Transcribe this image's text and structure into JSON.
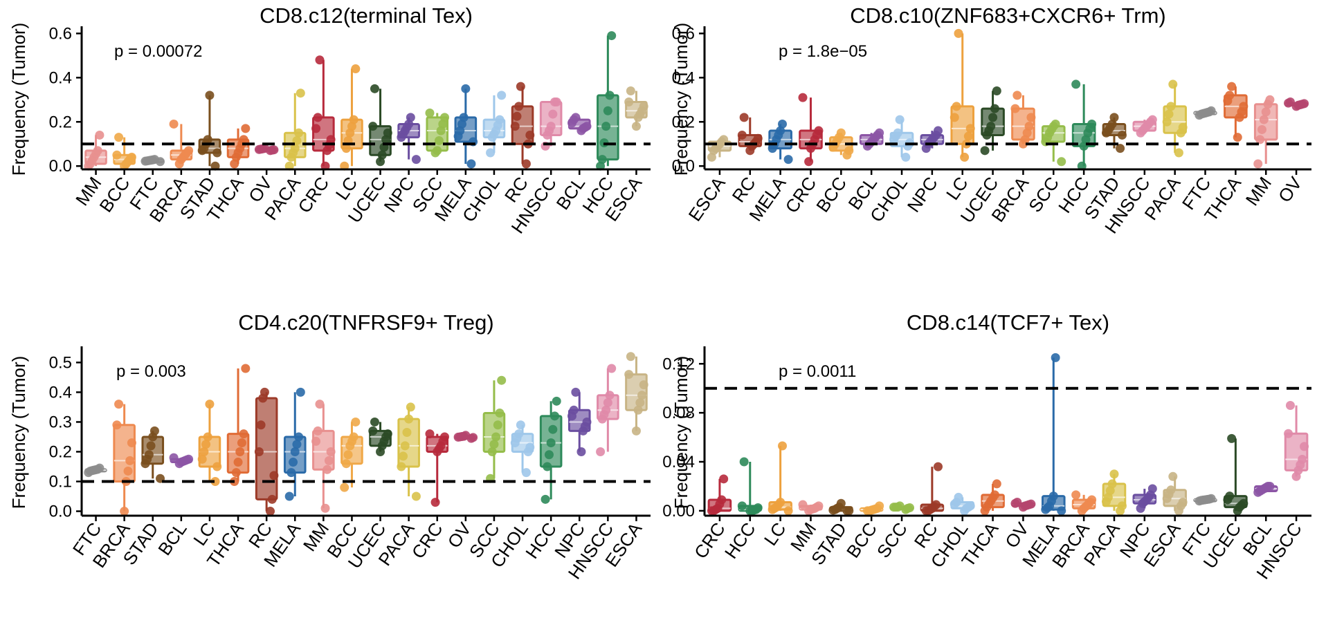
{
  "colors": {
    "MM": "#e8908f",
    "BCC": "#f0a848",
    "FTC": "#8c8c8c",
    "BRCA": "#ee8a50",
    "STAD": "#7a4f1e",
    "THCA": "#e06b35",
    "OV": "#b5456e",
    "PACA": "#d9c24a",
    "CRC": "#b72a3c",
    "LC": "#eda13e",
    "UCEC": "#2b4a26",
    "NPC": "#6a4ea0",
    "SCC": "#95bd4a",
    "MELA": "#2a6aa8",
    "CHOL": "#9ec7ea",
    "RC": "#9c3a28",
    "HNSCC": "#e08aa8",
    "BCL": "#8c55a5",
    "HCC": "#2d8a5a",
    "ESCA": "#c8b485"
  },
  "chart_data": [
    {
      "type": "box",
      "title": "CD8.c12(terminal Tex)",
      "ylabel": "Frequency (Tumor)",
      "pvalue": "p = 0.00072",
      "ylim": [
        -0.015,
        0.62
      ],
      "yticks": [
        0.0,
        0.2,
        0.4,
        0.6
      ],
      "ytick_labels": [
        "0.0",
        "0.2",
        "0.4",
        "0.6"
      ],
      "hline": 0.1,
      "categories": [
        "MM",
        "BCC",
        "FTC",
        "BRCA",
        "STAD",
        "THCA",
        "OV",
        "PACA",
        "CRC",
        "LC",
        "UCEC",
        "NPC",
        "SCC",
        "MELA",
        "CHOL",
        "RC",
        "HNSCC",
        "BCL",
        "HCC",
        "ESCA"
      ],
      "boxes": [
        {
          "min": 0.0,
          "q1": 0.01,
          "median": 0.04,
          "q3": 0.07,
          "max": 0.14
        },
        {
          "min": 0.0,
          "q1": 0.01,
          "median": 0.03,
          "q3": 0.05,
          "max": 0.13
        },
        {
          "min": 0.02,
          "q1": 0.022,
          "median": 0.025,
          "q3": 0.028,
          "max": 0.03
        },
        {
          "min": 0.01,
          "q1": 0.03,
          "median": 0.05,
          "q3": 0.07,
          "max": 0.19
        },
        {
          "min": 0.0,
          "q1": 0.06,
          "median": 0.08,
          "q3": 0.12,
          "max": 0.32
        },
        {
          "min": 0.01,
          "q1": 0.04,
          "median": 0.08,
          "q3": 0.12,
          "max": 0.17
        },
        {
          "min": 0.07,
          "q1": 0.072,
          "median": 0.075,
          "q3": 0.078,
          "max": 0.08
        },
        {
          "min": 0.0,
          "q1": 0.04,
          "median": 0.08,
          "q3": 0.15,
          "max": 0.33
        },
        {
          "min": 0.0,
          "q1": 0.07,
          "median": 0.12,
          "q3": 0.22,
          "max": 0.48
        },
        {
          "min": 0.0,
          "q1": 0.08,
          "median": 0.15,
          "q3": 0.21,
          "max": 0.44
        },
        {
          "min": 0.02,
          "q1": 0.05,
          "median": 0.12,
          "q3": 0.18,
          "max": 0.35
        },
        {
          "min": 0.03,
          "q1": 0.13,
          "median": 0.16,
          "q3": 0.19,
          "max": 0.22
        },
        {
          "min": 0.06,
          "q1": 0.07,
          "median": 0.16,
          "q3": 0.22,
          "max": 0.24
        },
        {
          "min": 0.01,
          "q1": 0.11,
          "median": 0.16,
          "q3": 0.22,
          "max": 0.35
        },
        {
          "min": 0.06,
          "q1": 0.13,
          "median": 0.16,
          "q3": 0.21,
          "max": 0.32
        },
        {
          "min": 0.01,
          "q1": 0.1,
          "median": 0.18,
          "q3": 0.27,
          "max": 0.36
        },
        {
          "min": 0.09,
          "q1": 0.14,
          "median": 0.18,
          "q3": 0.29,
          "max": 0.29
        },
        {
          "min": 0.16,
          "q1": 0.17,
          "median": 0.18,
          "q3": 0.21,
          "max": 0.22
        },
        {
          "min": 0.0,
          "q1": 0.03,
          "median": 0.18,
          "q3": 0.32,
          "max": 0.59
        },
        {
          "min": 0.18,
          "q1": 0.22,
          "median": 0.25,
          "q3": 0.29,
          "max": 0.34
        }
      ]
    },
    {
      "type": "box",
      "title": "CD8.c10(ZNF683+CXCR6+ Trm)",
      "ylabel": "Frequency (Tumor)",
      "pvalue": "p = 1.8e−05",
      "ylim": [
        -0.015,
        0.62
      ],
      "yticks": [
        0.0,
        0.2,
        0.4,
        0.6
      ],
      "ytick_labels": [
        "0.0",
        "0.2",
        "0.4",
        "0.6"
      ],
      "hline": 0.1,
      "categories": [
        "ESCA",
        "RC",
        "MELA",
        "CRC",
        "BCC",
        "BCL",
        "CHOL",
        "NPC",
        "LC",
        "UCEC",
        "BRCA",
        "SCC",
        "HCC",
        "STAD",
        "HNSCC",
        "PACA",
        "FTC",
        "THCA",
        "MM",
        "OV"
      ],
      "boxes": [
        {
          "min": 0.04,
          "q1": 0.07,
          "median": 0.09,
          "q3": 0.11,
          "max": 0.12
        },
        {
          "min": 0.07,
          "q1": 0.09,
          "median": 0.11,
          "q3": 0.14,
          "max": 0.22
        },
        {
          "min": 0.03,
          "q1": 0.08,
          "median": 0.12,
          "q3": 0.16,
          "max": 0.19
        },
        {
          "min": 0.02,
          "q1": 0.08,
          "median": 0.12,
          "q3": 0.16,
          "max": 0.31
        },
        {
          "min": 0.05,
          "q1": 0.07,
          "median": 0.1,
          "q3": 0.13,
          "max": 0.15
        },
        {
          "min": 0.09,
          "q1": 0.1,
          "median": 0.12,
          "q3": 0.14,
          "max": 0.15
        },
        {
          "min": 0.04,
          "q1": 0.09,
          "median": 0.12,
          "q3": 0.15,
          "max": 0.21
        },
        {
          "min": 0.08,
          "q1": 0.1,
          "median": 0.12,
          "q3": 0.14,
          "max": 0.16
        },
        {
          "min": 0.04,
          "q1": 0.1,
          "median": 0.17,
          "q3": 0.27,
          "max": 0.6
        },
        {
          "min": 0.07,
          "q1": 0.14,
          "median": 0.18,
          "q3": 0.26,
          "max": 0.34
        },
        {
          "min": 0.1,
          "q1": 0.12,
          "median": 0.18,
          "q3": 0.26,
          "max": 0.32
        },
        {
          "min": 0.02,
          "q1": 0.11,
          "median": 0.15,
          "q3": 0.18,
          "max": 0.19
        },
        {
          "min": 0.0,
          "q1": 0.09,
          "median": 0.15,
          "q3": 0.19,
          "max": 0.37
        },
        {
          "min": 0.08,
          "q1": 0.14,
          "median": 0.16,
          "q3": 0.19,
          "max": 0.22
        },
        {
          "min": 0.15,
          "q1": 0.16,
          "median": 0.18,
          "q3": 0.2,
          "max": 0.21
        },
        {
          "min": 0.06,
          "q1": 0.15,
          "median": 0.2,
          "q3": 0.27,
          "max": 0.37
        },
        {
          "min": 0.23,
          "q1": 0.235,
          "median": 0.24,
          "q3": 0.245,
          "max": 0.25
        },
        {
          "min": 0.13,
          "q1": 0.22,
          "median": 0.27,
          "q3": 0.32,
          "max": 0.36
        },
        {
          "min": 0.01,
          "q1": 0.12,
          "median": 0.21,
          "q3": 0.28,
          "max": 0.3
        },
        {
          "min": 0.27,
          "q1": 0.275,
          "median": 0.28,
          "q3": 0.285,
          "max": 0.29
        }
      ]
    },
    {
      "type": "box",
      "title": "CD4.c20(TNFRSF9+ Treg)",
      "ylabel": "Frequency (Tumor)",
      "pvalue": "p = 0.003",
      "ylim": [
        -0.015,
        0.545
      ],
      "yticks": [
        0.0,
        0.1,
        0.2,
        0.3,
        0.4,
        0.5
      ],
      "ytick_labels": [
        "0.0",
        "0.1",
        "0.2",
        "0.3",
        "0.4",
        "0.5"
      ],
      "hline": 0.1,
      "categories": [
        "FTC",
        "BRCA",
        "STAD",
        "BCL",
        "LC",
        "THCA",
        "RC",
        "MELA",
        "MM",
        "BCC",
        "UCEC",
        "PACA",
        "CRC",
        "OV",
        "SCC",
        "CHOL",
        "HCC",
        "NPC",
        "HNSCC",
        "ESCA"
      ],
      "boxes": [
        {
          "min": 0.13,
          "q1": 0.135,
          "median": 0.138,
          "q3": 0.141,
          "max": 0.145
        },
        {
          "min": 0.0,
          "q1": 0.1,
          "median": 0.17,
          "q3": 0.29,
          "max": 0.36
        },
        {
          "min": 0.11,
          "q1": 0.16,
          "median": 0.19,
          "q3": 0.25,
          "max": 0.27
        },
        {
          "min": 0.16,
          "q1": 0.165,
          "median": 0.17,
          "q3": 0.175,
          "max": 0.18
        },
        {
          "min": 0.1,
          "q1": 0.15,
          "median": 0.2,
          "q3": 0.25,
          "max": 0.36
        },
        {
          "min": 0.1,
          "q1": 0.13,
          "median": 0.2,
          "q3": 0.26,
          "max": 0.48
        },
        {
          "min": 0.0,
          "q1": 0.04,
          "median": 0.2,
          "q3": 0.38,
          "max": 0.4
        },
        {
          "min": 0.05,
          "q1": 0.13,
          "median": 0.2,
          "q3": 0.25,
          "max": 0.4
        },
        {
          "min": 0.01,
          "q1": 0.14,
          "median": 0.2,
          "q3": 0.27,
          "max": 0.36
        },
        {
          "min": 0.08,
          "q1": 0.16,
          "median": 0.22,
          "q3": 0.25,
          "max": 0.3
        },
        {
          "min": 0.2,
          "q1": 0.22,
          "median": 0.25,
          "q3": 0.27,
          "max": 0.3
        },
        {
          "min": 0.05,
          "q1": 0.15,
          "median": 0.22,
          "q3": 0.31,
          "max": 0.35
        },
        {
          "min": 0.03,
          "q1": 0.2,
          "median": 0.22,
          "q3": 0.25,
          "max": 0.26
        },
        {
          "min": 0.245,
          "q1": 0.248,
          "median": 0.25,
          "q3": 0.252,
          "max": 0.255
        },
        {
          "min": 0.11,
          "q1": 0.2,
          "median": 0.25,
          "q3": 0.33,
          "max": 0.44
        },
        {
          "min": 0.13,
          "q1": 0.2,
          "median": 0.23,
          "q3": 0.26,
          "max": 0.29
        },
        {
          "min": 0.04,
          "q1": 0.15,
          "median": 0.23,
          "q3": 0.32,
          "max": 0.37
        },
        {
          "min": 0.2,
          "q1": 0.27,
          "median": 0.3,
          "q3": 0.34,
          "max": 0.4
        },
        {
          "min": 0.2,
          "q1": 0.31,
          "median": 0.34,
          "q3": 0.39,
          "max": 0.48
        },
        {
          "min": 0.27,
          "q1": 0.34,
          "median": 0.39,
          "q3": 0.46,
          "max": 0.52
        }
      ]
    },
    {
      "type": "box",
      "title": "CD8.c14(TCF7+ Tex)",
      "ylabel": "Frequency (Tumor)",
      "pvalue": "p = 0.0011",
      "ylim": [
        -0.004,
        0.132
      ],
      "yticks": [
        0.0,
        0.04,
        0.08,
        0.12
      ],
      "ytick_labels": [
        "0.00",
        "0.04",
        "0.08",
        "0.12"
      ],
      "hline": 0.1,
      "categories": [
        "CRC",
        "HCC",
        "LC",
        "MM",
        "STAD",
        "BCC",
        "SCC",
        "RC",
        "CHOL",
        "THCA",
        "OV",
        "MELA",
        "BRCA",
        "PACA",
        "NPC",
        "ESCA",
        "FTC",
        "UCEC",
        "BCL",
        "HNSCC"
      ],
      "boxes": [
        {
          "min": 0.0,
          "q1": 0.0,
          "median": 0.002,
          "q3": 0.009,
          "max": 0.026
        },
        {
          "min": 0.0,
          "q1": 0.0,
          "median": 0.001,
          "q3": 0.004,
          "max": 0.04
        },
        {
          "min": 0.0,
          "q1": 0.001,
          "median": 0.003,
          "q3": 0.007,
          "max": 0.053
        },
        {
          "min": 0.0,
          "q1": 0.001,
          "median": 0.002,
          "q3": 0.004,
          "max": 0.005
        },
        {
          "min": 0.0,
          "q1": 0.0,
          "median": 0.001,
          "q3": 0.003,
          "max": 0.006
        },
        {
          "min": 0.0,
          "q1": 0.0,
          "median": 0.001,
          "q3": 0.002,
          "max": 0.004
        },
        {
          "min": 0.001,
          "q1": 0.002,
          "median": 0.003,
          "q3": 0.003,
          "max": 0.004
        },
        {
          "min": 0.0,
          "q1": 0.0,
          "median": 0.002,
          "q3": 0.005,
          "max": 0.036
        },
        {
          "min": 0.0,
          "q1": 0.002,
          "median": 0.004,
          "q3": 0.007,
          "max": 0.011
        },
        {
          "min": 0.0,
          "q1": 0.003,
          "median": 0.008,
          "q3": 0.013,
          "max": 0.022
        },
        {
          "min": 0.003,
          "q1": 0.004,
          "median": 0.005,
          "q3": 0.006,
          "max": 0.007
        },
        {
          "min": 0.0,
          "q1": 0.001,
          "median": 0.004,
          "q3": 0.012,
          "max": 0.125
        },
        {
          "min": 0.0,
          "q1": 0.002,
          "median": 0.005,
          "q3": 0.009,
          "max": 0.013
        },
        {
          "min": 0.0,
          "q1": 0.004,
          "median": 0.011,
          "q3": 0.022,
          "max": 0.03
        },
        {
          "min": 0.002,
          "q1": 0.006,
          "median": 0.009,
          "q3": 0.013,
          "max": 0.018
        },
        {
          "min": 0.0,
          "q1": 0.004,
          "median": 0.01,
          "q3": 0.017,
          "max": 0.028
        },
        {
          "min": 0.008,
          "q1": 0.0085,
          "median": 0.009,
          "q3": 0.0095,
          "max": 0.01
        },
        {
          "min": 0.0,
          "q1": 0.003,
          "median": 0.006,
          "q3": 0.012,
          "max": 0.059
        },
        {
          "min": 0.015,
          "q1": 0.016,
          "median": 0.018,
          "q3": 0.02,
          "max": 0.02
        },
        {
          "min": 0.028,
          "q1": 0.033,
          "median": 0.042,
          "q3": 0.063,
          "max": 0.086
        }
      ]
    }
  ]
}
